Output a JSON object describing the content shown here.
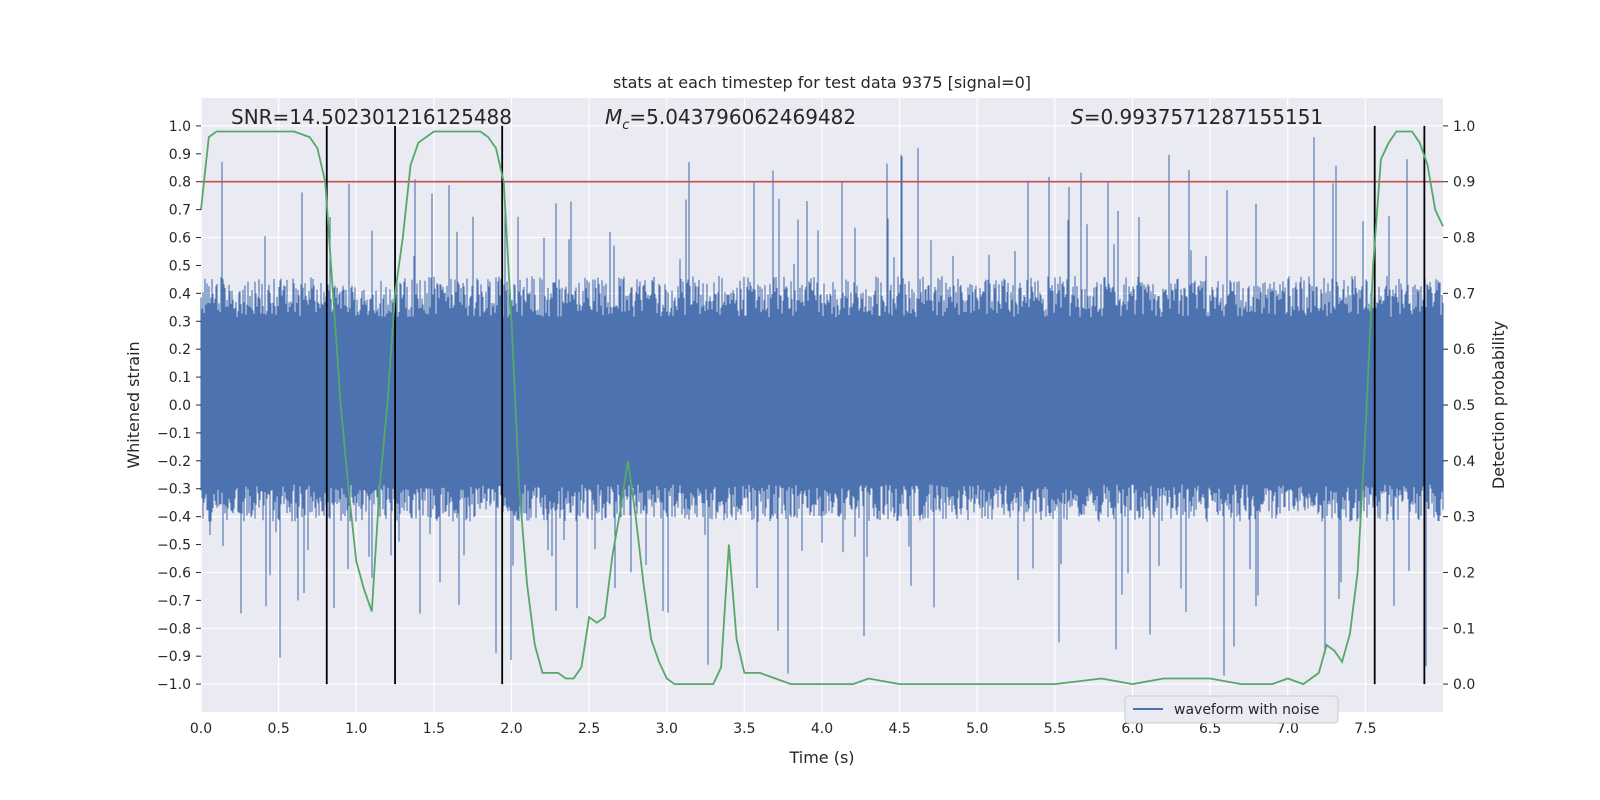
{
  "chart_data": {
    "type": "line",
    "title": "stats at each timestep for test data 9375 [signal=0]",
    "xlabel": "Time (s)",
    "ylabel_left": "Whitened strain",
    "ylabel_right": "Detection probability",
    "xlim": [
      0.0,
      8.0
    ],
    "ylim_left": [
      -1.1,
      1.1
    ],
    "ylim_right": [
      -0.05,
      1.05
    ],
    "x_ticks": [
      "0.0",
      "0.5",
      "1.0",
      "1.5",
      "2.0",
      "2.5",
      "3.0",
      "3.5",
      "4.0",
      "4.5",
      "5.0",
      "5.5",
      "6.0",
      "6.5",
      "7.0",
      "7.5"
    ],
    "y_ticks_left": [
      "1.0",
      "0.9",
      "0.8",
      "0.7",
      "0.6",
      "0.5",
      "0.4",
      "0.3",
      "0.2",
      "0.1",
      "0.0",
      "−0.1",
      "−0.2",
      "−0.3",
      "−0.4",
      "−0.5",
      "−0.6",
      "−0.7",
      "−0.8",
      "−0.9",
      "−1.0"
    ],
    "y_ticks_right": [
      "1.0",
      "0.9",
      "0.8",
      "0.7",
      "0.6",
      "0.5",
      "0.4",
      "0.3",
      "0.2",
      "0.1",
      "0.0"
    ],
    "grid": true,
    "annotations": {
      "snr": "SNR=14.502301216125488",
      "mc_prefix": "M",
      "mc_sub": "c",
      "mc_value": "=5.043796062469482",
      "s_prefix": "S",
      "s_value": "=0.9937571287155151"
    },
    "threshold": {
      "value": 0.9,
      "axis": "right",
      "color": "#c44e52"
    },
    "vertical_lines_x": [
      0.81,
      1.25,
      1.94,
      7.56,
      7.88
    ],
    "series": [
      {
        "name": "waveform with noise",
        "axis": "left",
        "color": "#4c72b0",
        "envelope": {
          "duration": 8.0,
          "peak_max": 0.98,
          "peak_min": -1.0,
          "typical_upper": 0.42,
          "typical_lower": -0.38
        }
      },
      {
        "name": "detection probability",
        "axis": "right",
        "color": "#55a868",
        "x": [
          0.0,
          0.05,
          0.1,
          0.2,
          0.3,
          0.4,
          0.5,
          0.6,
          0.7,
          0.75,
          0.8,
          0.85,
          0.9,
          0.95,
          1.0,
          1.05,
          1.1,
          1.15,
          1.2,
          1.25,
          1.3,
          1.35,
          1.4,
          1.5,
          1.6,
          1.7,
          1.8,
          1.85,
          1.9,
          1.95,
          2.0,
          2.05,
          2.1,
          2.15,
          2.2,
          2.3,
          2.35,
          2.4,
          2.45,
          2.5,
          2.55,
          2.6,
          2.65,
          2.7,
          2.75,
          2.8,
          2.85,
          2.9,
          2.95,
          3.0,
          3.05,
          3.1,
          3.2,
          3.3,
          3.35,
          3.4,
          3.45,
          3.5,
          3.55,
          3.6,
          3.7,
          3.8,
          4.0,
          4.2,
          4.3,
          4.5,
          4.7,
          5.0,
          5.3,
          5.5,
          5.8,
          6.0,
          6.2,
          6.3,
          6.5,
          6.7,
          6.9,
          7.0,
          7.1,
          7.2,
          7.25,
          7.3,
          7.35,
          7.4,
          7.45,
          7.5,
          7.55,
          7.6,
          7.65,
          7.7,
          7.75,
          7.8,
          7.85,
          7.9,
          7.95,
          8.0
        ],
        "y": [
          0.85,
          0.98,
          0.99,
          0.99,
          0.99,
          0.99,
          0.99,
          0.99,
          0.98,
          0.96,
          0.9,
          0.7,
          0.5,
          0.35,
          0.22,
          0.17,
          0.13,
          0.35,
          0.5,
          0.7,
          0.8,
          0.93,
          0.97,
          0.99,
          0.99,
          0.99,
          0.99,
          0.98,
          0.96,
          0.9,
          0.65,
          0.35,
          0.18,
          0.07,
          0.02,
          0.02,
          0.01,
          0.01,
          0.03,
          0.12,
          0.11,
          0.12,
          0.23,
          0.31,
          0.4,
          0.3,
          0.18,
          0.08,
          0.04,
          0.01,
          0.0,
          0.0,
          0.0,
          0.0,
          0.03,
          0.25,
          0.08,
          0.02,
          0.02,
          0.02,
          0.01,
          0.0,
          0.0,
          0.0,
          0.01,
          0.0,
          0.0,
          0.0,
          0.0,
          0.0,
          0.01,
          0.0,
          0.01,
          0.01,
          0.01,
          0.0,
          0.0,
          0.01,
          0.0,
          0.02,
          0.07,
          0.06,
          0.04,
          0.09,
          0.2,
          0.45,
          0.75,
          0.94,
          0.97,
          0.99,
          0.99,
          0.99,
          0.97,
          0.93,
          0.85,
          0.82
        ]
      }
    ],
    "legend": {
      "position": "bottom-right",
      "entries": [
        "waveform with noise"
      ]
    }
  }
}
